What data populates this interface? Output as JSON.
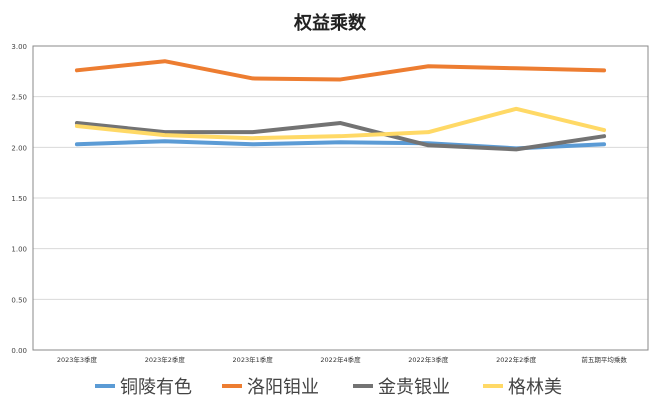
{
  "chart_data": {
    "type": "line",
    "title": "权益乘数",
    "categories": [
      "2023年3季度",
      "2023年2季度",
      "2023年1季度",
      "2022年4季度",
      "2022年3季度",
      "2022年2季度",
      "前五期平均乘数"
    ],
    "ylim": [
      0,
      3
    ],
    "yticks": [
      "0.00",
      "0.50",
      "1.00",
      "1.50",
      "2.00",
      "2.50",
      "3.00"
    ],
    "grid": true,
    "legend": "bottom",
    "series": [
      {
        "name": "铜陵有色",
        "color": "#5b9bd5",
        "values": [
          2.03,
          2.06,
          2.03,
          2.05,
          2.04,
          1.99,
          2.03
        ]
      },
      {
        "name": "洛阳钼业",
        "color": "#ed7d31",
        "values": [
          2.76,
          2.85,
          2.68,
          2.67,
          2.8,
          2.78,
          2.76
        ]
      },
      {
        "name": "金贵银业",
        "color": "#737373",
        "values": [
          2.24,
          2.15,
          2.15,
          2.24,
          2.02,
          1.98,
          2.11
        ]
      },
      {
        "name": "格林美",
        "color": "#ffd966",
        "values": [
          2.21,
          2.12,
          2.09,
          2.11,
          2.15,
          2.38,
          2.17
        ]
      }
    ]
  }
}
